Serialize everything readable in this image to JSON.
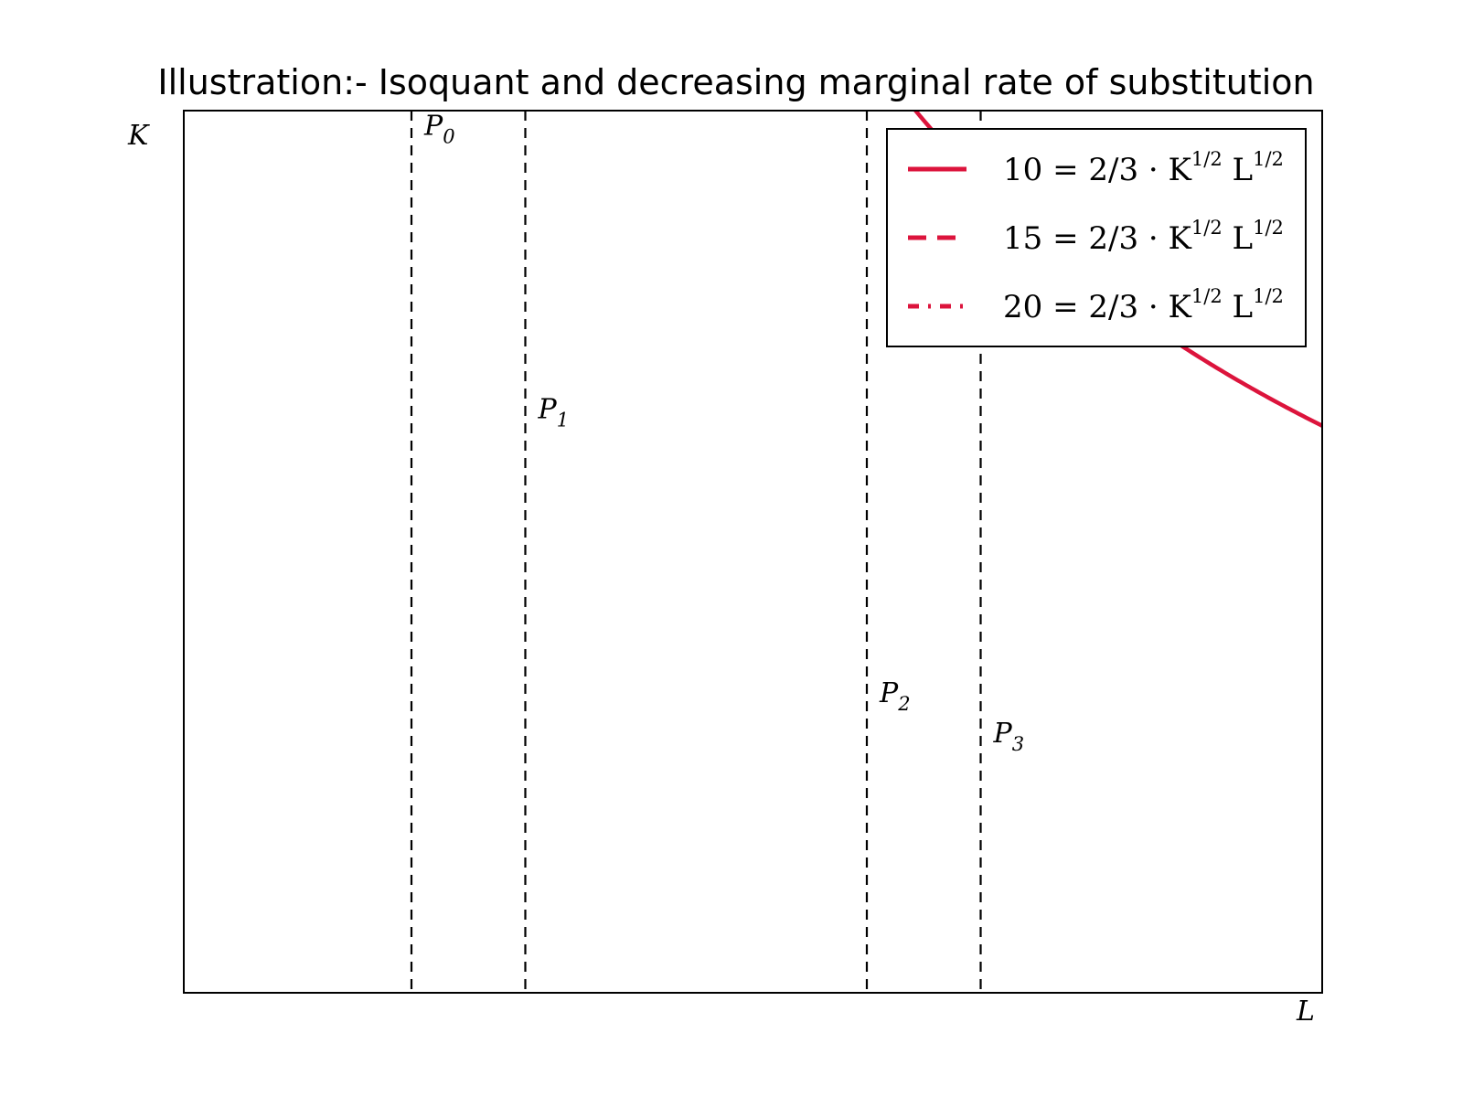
{
  "chart_data": {
    "type": "line",
    "title": "Illustration:- Isoquant and decreasing marginal rate of substitution",
    "xlabel": "L",
    "ylabel": "K",
    "xlim": [
      0,
      10
    ],
    "ylim": [
      0,
      35
    ],
    "grid": false,
    "legend_position": "top-right",
    "colors": {
      "series": "#dc143c",
      "guides": "#000000"
    },
    "series": [
      {
        "name": "10 = 2/3 · K^{1/2} L^{1/2}",
        "output": 10,
        "coefficient": 0.6667,
        "exponent_K": 0.5,
        "exponent_L": 0.5,
        "style": "solid",
        "x_range": [
          0.45,
          10
        ]
      },
      {
        "name": "15 = 2/3 · K^{1/2} L^{1/2}",
        "output": 15,
        "coefficient": 0.6667,
        "exponent_K": 0.5,
        "exponent_L": 0.5,
        "style": "dashed",
        "x_range": [
          1.02,
          9.9
        ]
      },
      {
        "name": "20 = 2/3 · K^{1/2} L^{1/2}",
        "output": 20,
        "coefficient": 0.6667,
        "exponent_K": 0.5,
        "exponent_L": 0.5,
        "style": "dashdot",
        "x_range": [
          1.8,
          10
        ]
      }
    ],
    "legend_parts": [
      {
        "lhs": "10",
        "mid": " = 2/3 · K",
        "exp1": "1/2",
        "var2": " L",
        "exp2": "1/2"
      },
      {
        "lhs": "15",
        "mid": " = 2/3 · K",
        "exp1": "1/2",
        "var2": " L",
        "exp2": "1/2"
      },
      {
        "lhs": "20",
        "mid": " = 2/3 · K",
        "exp1": "1/2",
        "var2": " L",
        "exp2": "1/2"
      }
    ],
    "vertical_lines": [
      2,
      3,
      6,
      7
    ],
    "points": [
      {
        "label": "P",
        "sub": "0",
        "x": 2,
        "y": 33.75
      },
      {
        "label": "P",
        "sub": "1",
        "x": 3,
        "y": 22.5
      },
      {
        "label": "P",
        "sub": "2",
        "x": 6,
        "y": 11.25
      },
      {
        "label": "P",
        "sub": "3",
        "x": 7,
        "y": 9.64
      }
    ]
  }
}
